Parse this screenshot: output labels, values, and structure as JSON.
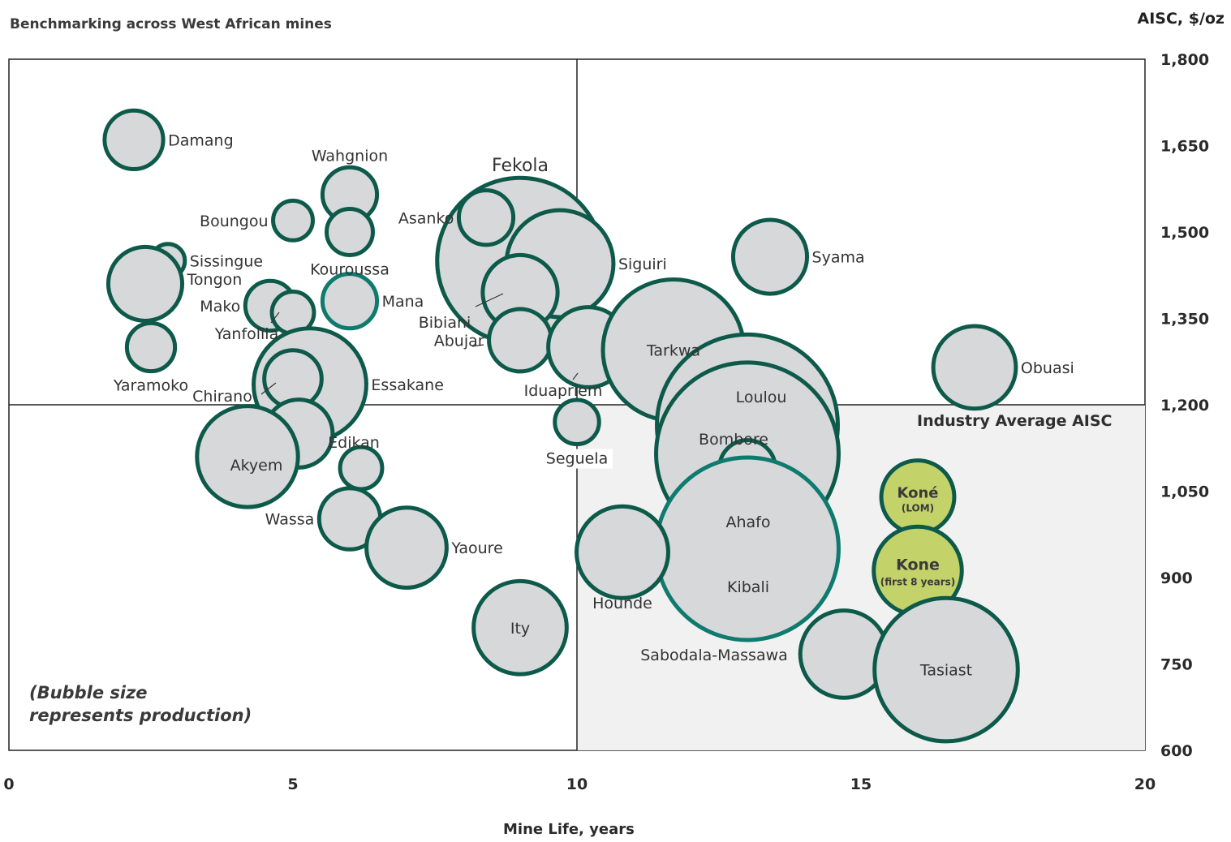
{
  "title": "Benchmarking across West African mines",
  "chart_data": {
    "type": "scatter",
    "subtype": "bubble",
    "title": "Benchmarking across West African mines",
    "xlabel": "Mine Life, years",
    "ylabel": "AISC, $/oz",
    "xlim": [
      0,
      20
    ],
    "ylim": [
      600,
      1800
    ],
    "x_ticks": [
      "0",
      "5",
      "10",
      "15",
      "20"
    ],
    "y_ticks": [
      "600",
      "750",
      "900",
      "1,050",
      "1,200",
      "1,350",
      "1,500",
      "1,650",
      "1,800"
    ],
    "y_axis_side": "right",
    "reference_lines": [
      {
        "axis": "y",
        "value": 1200,
        "label": "Industry Average AISC"
      },
      {
        "axis": "x",
        "value": 10,
        "label": ""
      }
    ],
    "shaded_region": {
      "x": [
        10,
        20
      ],
      "y": [
        600,
        1200
      ]
    },
    "note": [
      "(Bubble size",
      "represents production)"
    ],
    "colors": {
      "outline": "#0d5a4b",
      "outline_alt": "#0f7a6e",
      "fill": "#d7d8d9",
      "highlight": "#c3d36a",
      "shade": "#f1f1f1"
    },
    "points": [
      {
        "name": "Damang",
        "x": 2.2,
        "y": 1660,
        "size": 1.5
      },
      {
        "name": "Wahgnion",
        "x": 6.0,
        "y": 1565,
        "size": 1.2
      },
      {
        "name": "Boungou",
        "x": 5.0,
        "y": 1520,
        "size": 0.4
      },
      {
        "name": "Kouroussa",
        "x": 6.0,
        "y": 1500,
        "size": 0.7
      },
      {
        "name": "Asanko",
        "x": 8.4,
        "y": 1525,
        "size": 1.2
      },
      {
        "name": "Fekola",
        "x": 9.0,
        "y": 1450,
        "size": 21
      },
      {
        "name": "Sissingue",
        "x": 2.8,
        "y": 1450,
        "size": 0.2
      },
      {
        "name": "Tongon",
        "x": 2.4,
        "y": 1410,
        "size": 2.9
      },
      {
        "name": "Siguiri",
        "x": 9.7,
        "y": 1445,
        "size": 7.5
      },
      {
        "name": "Bibiani",
        "x": 9.0,
        "y": 1395,
        "size": 3.0
      },
      {
        "name": "Syama",
        "x": 13.4,
        "y": 1457,
        "size": 2.9
      },
      {
        "name": "Mana",
        "x": 6.0,
        "y": 1380,
        "size": 1.2
      },
      {
        "name": "Mako",
        "x": 4.6,
        "y": 1372,
        "size": 0.9
      },
      {
        "name": "Yanfolila",
        "x": 5.0,
        "y": 1360,
        "size": 0.5
      },
      {
        "name": "Abujar",
        "x": 9.0,
        "y": 1312,
        "size": 1.8
      },
      {
        "name": "Yaramoko",
        "x": 2.5,
        "y": 1300,
        "size": 0.8
      },
      {
        "name": "Iduapriem",
        "x": 10.2,
        "y": 1300,
        "size": 3.6
      },
      {
        "name": "Tarkwa",
        "x": 11.7,
        "y": 1295,
        "size": 14.5
      },
      {
        "name": "Obuasi",
        "x": 17.0,
        "y": 1265,
        "size": 3.9
      },
      {
        "name": "Essakane",
        "x": 5.3,
        "y": 1235,
        "size": 8.5
      },
      {
        "name": "Chirano",
        "x": 5.0,
        "y": 1245,
        "size": 1.4
      },
      {
        "name": "Loulou",
        "x": 13.0,
        "y": 1165,
        "size": 25.5
      },
      {
        "name": "Seguela",
        "x": 10.0,
        "y": 1170,
        "size": 0.6
      },
      {
        "name": "Edikan",
        "x": 5.1,
        "y": 1150,
        "size": 2.3
      },
      {
        "name": "Bombore",
        "x": 13.0,
        "y": 1115,
        "size": 26
      },
      {
        "name": "Akyem",
        "x": 4.2,
        "y": 1110,
        "size": 6.5
      },
      {
        "name": "",
        "x": 6.2,
        "y": 1090,
        "size": 0.5
      },
      {
        "name": "",
        "x": 13.0,
        "y": 1090,
        "size": 1.3
      },
      {
        "name": "Koné (LOM)",
        "x": 16.0,
        "y": 1040,
        "size": 2.8
      },
      {
        "name": "Ahafo",
        "x": 13.0,
        "y": 1060,
        "size": 0
      },
      {
        "name": "Wassa",
        "x": 6.0,
        "y": 1002,
        "size": 1.7
      },
      {
        "name": "Kibali",
        "x": 13.0,
        "y": 950,
        "size": 26
      },
      {
        "name": "Yaoure",
        "x": 7.0,
        "y": 952,
        "size": 3.6
      },
      {
        "name": "Hounde",
        "x": 10.8,
        "y": 944,
        "size": 5.1
      },
      {
        "name": "Kone (first 8 years)",
        "x": 16.0,
        "y": 912,
        "size": 4.6
      },
      {
        "name": "Ity",
        "x": 9.0,
        "y": 813,
        "size": 5.3
      },
      {
        "name": "Sabodala-Massawa",
        "x": 14.7,
        "y": 767,
        "size": 4.5
      },
      {
        "name": "Tasiast",
        "x": 16.5,
        "y": 740,
        "size": 15
      }
    ]
  },
  "labels": {
    "title": "Benchmarking across West African mines",
    "y_unit": "AISC, $/oz",
    "x_label": "Mine Life, years",
    "note_line1": "(Bubble size",
    "note_line2": "represents production)",
    "industry_avg": "Industry Average AISC"
  }
}
